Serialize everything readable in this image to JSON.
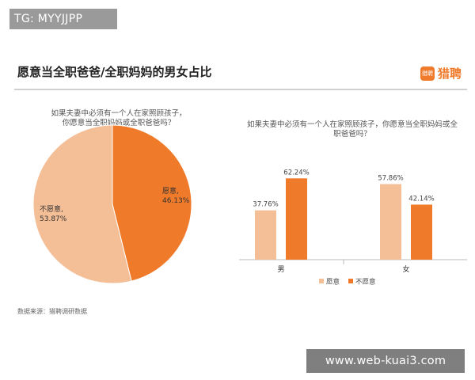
{
  "watermark_top": "TG: MYYJJPP",
  "watermark_bottom": "www.web-kuai3.com",
  "title": "愿意当全职爸爸/全职妈妈的男女占比",
  "logo_text": "猎聘",
  "logo_mark": "猎聘",
  "source_note": "数据来源：猎聘调研数据",
  "colors": {
    "light": "#f4be96",
    "dark": "#ef7a2a",
    "axis": "#bbbbbb"
  },
  "chart_data": [
    {
      "type": "pie",
      "title": "如果夫妻中必须有一个人在家照顾孩子，你愿意当全职妈妈或全职爸爸吗？",
      "slices": [
        {
          "label": "愿意",
          "value": 46.13,
          "display": "46.13%"
        },
        {
          "label": "不愿意",
          "value": 53.87,
          "display": "53.87%"
        }
      ]
    },
    {
      "type": "bar",
      "title": "如果夫妻中必须有一个人在家照顾孩子，你愿意当全职妈妈或全职爸爸吗？",
      "categories": [
        "男",
        "女"
      ],
      "series": [
        {
          "name": "愿意",
          "values": [
            37.76,
            57.86
          ],
          "labels": [
            "37.76%",
            "57.86%"
          ]
        },
        {
          "name": "不愿意",
          "values": [
            62.24,
            42.14
          ],
          "labels": [
            "62.24%",
            "42.14%"
          ]
        }
      ],
      "legend": "bottom"
    }
  ]
}
